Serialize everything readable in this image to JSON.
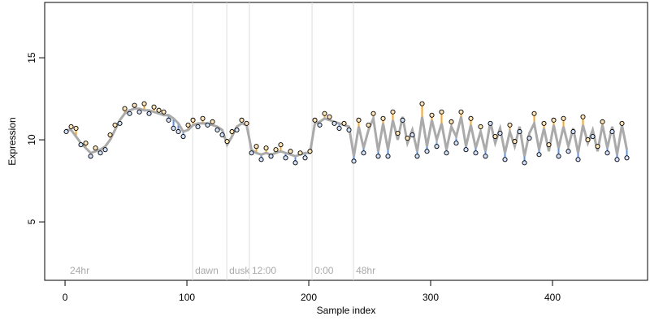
{
  "chart_data": {
    "type": "scatter",
    "xlabel": "Sample index",
    "ylabel": "Expression",
    "xlim": [
      -16.7,
      478
    ],
    "ylim": [
      1.44,
      18.37
    ],
    "xticks": [
      0,
      100,
      200,
      300,
      400
    ],
    "yticks": [
      5,
      10,
      15
    ],
    "fit_color": "#aaaaaa",
    "up_color": "#f5a623",
    "down_color": "#5b8fe0",
    "point_color": "#000000",
    "annotations": [
      {
        "x": 2,
        "label": "24hr",
        "line": false
      },
      {
        "x": 104.7,
        "label": "dawn",
        "line": true
      },
      {
        "x": 132.7,
        "label": "dusk",
        "line": true
      },
      {
        "x": 151.3,
        "label": "12:00",
        "line": true
      },
      {
        "x": 202.7,
        "label": "0:00",
        "line": true
      },
      {
        "x": 236.7,
        "label": "48hr",
        "line": true
      }
    ],
    "x": [
      1,
      5,
      9,
      13,
      17,
      21,
      25,
      29,
      33,
      37,
      41,
      45,
      49,
      53,
      57,
      61,
      65,
      69,
      73,
      77,
      81,
      85,
      89,
      93,
      97,
      101,
      105,
      109,
      113,
      117,
      121,
      125,
      129,
      133,
      137,
      141,
      145,
      149,
      153,
      157,
      161,
      165,
      169,
      173,
      177,
      181,
      185,
      189,
      193,
      197,
      201,
      205,
      209,
      213,
      217,
      221,
      225,
      229,
      233,
      237,
      241,
      245,
      249,
      253,
      257,
      261,
      265,
      269,
      273,
      277,
      281,
      285,
      289,
      293,
      297,
      301,
      305,
      309,
      313,
      317,
      321,
      325,
      329,
      333,
      337,
      341,
      345,
      349,
      353,
      357,
      361,
      365,
      369,
      373,
      377,
      381,
      385,
      389,
      393,
      397,
      401,
      405,
      409,
      413,
      417,
      421,
      425,
      429,
      433,
      437,
      441,
      445,
      449,
      453,
      457,
      461
    ],
    "observed": [
      10.5,
      10.8,
      10.7,
      9.7,
      9.8,
      9.0,
      9.5,
      9.2,
      9.4,
      10.3,
      10.9,
      11.0,
      11.9,
      11.6,
      12.1,
      11.7,
      12.2,
      11.6,
      12.0,
      11.8,
      11.7,
      11.2,
      10.7,
      10.5,
      10.2,
      10.9,
      11.2,
      10.8,
      11.3,
      10.9,
      11.1,
      10.6,
      10.3,
      9.9,
      10.5,
      10.6,
      11.2,
      11.0,
      9.2,
      9.6,
      8.8,
      9.5,
      9.0,
      9.4,
      9.7,
      8.9,
      9.3,
      8.6,
      9.2,
      8.9,
      9.3,
      11.2,
      10.9,
      11.6,
      11.4,
      11.0,
      10.7,
      11.0,
      10.6,
      8.7,
      11.2,
      9.2,
      10.9,
      11.6,
      9.0,
      11.3,
      9.0,
      11.7,
      10.4,
      11.2,
      10.1,
      10.3,
      9.0,
      12.2,
      9.3,
      11.5,
      9.6,
      11.7,
      9.2,
      11.1,
      9.8,
      11.7,
      9.4,
      11.3,
      9.2,
      10.8,
      9.0,
      11.0,
      10.2,
      10.4,
      8.8,
      10.9,
      9.9,
      10.5,
      8.6,
      10.1,
      11.6,
      9.1,
      11.0,
      9.7,
      11.2,
      9.0,
      11.3,
      9.3,
      10.5,
      8.8,
      11.4,
      10.0,
      10.2,
      9.6,
      11.1,
      9.2,
      10.5,
      8.8,
      11.0,
      8.9
    ],
    "fitted": [
      10.6,
      10.6,
      10.2,
      9.8,
      9.5,
      9.2,
      9.3,
      9.4,
      9.6,
      10.0,
      10.6,
      11.2,
      11.6,
      11.8,
      11.9,
      11.9,
      11.8,
      11.8,
      11.7,
      11.6,
      11.5,
      11.5,
      11.3,
      11.0,
      10.5,
      10.6,
      10.9,
      11.0,
      11.0,
      11.0,
      10.9,
      10.8,
      10.6,
      9.7,
      10.2,
      10.8,
      11.0,
      10.9,
      9.4,
      9.2,
      9.1,
      9.2,
      9.1,
      9.2,
      9.3,
      9.2,
      9.1,
      9.0,
      9.1,
      9.2,
      9.2,
      11.0,
      11.1,
      11.3,
      11.2,
      11.1,
      11.0,
      10.9,
      10.8,
      9.0,
      10.8,
      9.5,
      10.6,
      11.3,
      9.3,
      11.0,
      9.4,
      11.2,
      10.0,
      11.4,
      9.8,
      10.6,
      9.3,
      11.4,
      9.6,
      11.2,
      10.0,
      11.0,
      9.4,
      10.8,
      10.2,
      11.4,
      9.6,
      10.9,
      9.5,
      10.5,
      9.3,
      11.1,
      9.8,
      10.7,
      9.2,
      10.5,
      9.6,
      10.8,
      9.0,
      10.4,
      11.0,
      9.4,
      10.7,
      9.3,
      10.9,
      9.5,
      10.8,
      9.6,
      10.7,
      9.2,
      10.9,
      9.8,
      10.6,
      9.3,
      10.9,
      9.5,
      10.8,
      9.1,
      10.9,
      9.4
    ]
  }
}
